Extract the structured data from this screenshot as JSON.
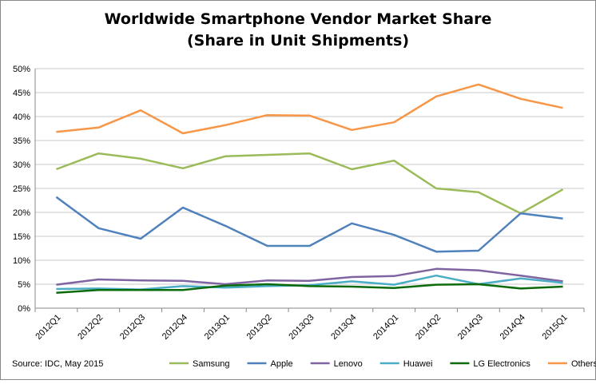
{
  "chart_data": {
    "type": "line",
    "title": [
      "Worldwide Smartphone Vendor Market Share",
      "(Share in Unit Shipments)"
    ],
    "source": "Source: IDC, May 2015",
    "categories": [
      "2012Q1",
      "2012Q2",
      "2012Q3",
      "2012Q4",
      "2013Q1",
      "2013Q2",
      "2013Q3",
      "2013Q4",
      "2014Q1",
      "2014Q2",
      "2014Q3",
      "2014Q4",
      "2015Q1"
    ],
    "series": [
      {
        "name": "Samsung",
        "color": "#9bbb59",
        "values": [
          29.0,
          32.3,
          31.2,
          29.2,
          31.7,
          32.0,
          32.3,
          29.0,
          30.8,
          25.0,
          24.2,
          19.8,
          24.8
        ]
      },
      {
        "name": "Apple",
        "color": "#4f81bd",
        "values": [
          23.2,
          16.7,
          14.5,
          21.0,
          17.2,
          13.0,
          13.0,
          17.7,
          15.3,
          11.8,
          12.0,
          19.8,
          18.7
        ]
      },
      {
        "name": "Lenovo",
        "color": "#8064a2",
        "values": [
          4.9,
          6.0,
          5.8,
          5.7,
          5.0,
          5.8,
          5.7,
          6.5,
          6.7,
          8.2,
          7.9,
          6.8,
          5.6
        ]
      },
      {
        "name": "Huawei",
        "color": "#4bacc6",
        "values": [
          4.0,
          4.1,
          3.9,
          4.6,
          4.3,
          4.6,
          4.8,
          5.6,
          4.9,
          6.8,
          5.0,
          6.2,
          5.3
        ]
      },
      {
        "name": "LG Electronics",
        "color": "#0b6b0b",
        "values": [
          3.2,
          3.8,
          3.8,
          3.8,
          4.7,
          5.0,
          4.6,
          4.5,
          4.2,
          4.9,
          5.0,
          4.1,
          4.5
        ]
      },
      {
        "name": "Others",
        "color": "#f79646",
        "values": [
          36.8,
          37.7,
          41.3,
          36.5,
          38.2,
          40.3,
          40.2,
          37.2,
          38.8,
          44.2,
          46.7,
          43.7,
          41.8
        ]
      }
    ],
    "ylim": [
      0,
      50
    ],
    "yticks": [
      {
        "value": 0,
        "label": "0%"
      },
      {
        "value": 5,
        "label": "5%"
      },
      {
        "value": 10,
        "label": "10%"
      },
      {
        "value": 15,
        "label": "15%"
      },
      {
        "value": 20,
        "label": "20%"
      },
      {
        "value": 25,
        "label": "25%"
      },
      {
        "value": 30,
        "label": "30%"
      },
      {
        "value": 35,
        "label": "35%"
      },
      {
        "value": 40,
        "label": "40%"
      },
      {
        "value": 45,
        "label": "45%"
      },
      {
        "value": 50,
        "label": "50%"
      }
    ],
    "grid": true
  }
}
